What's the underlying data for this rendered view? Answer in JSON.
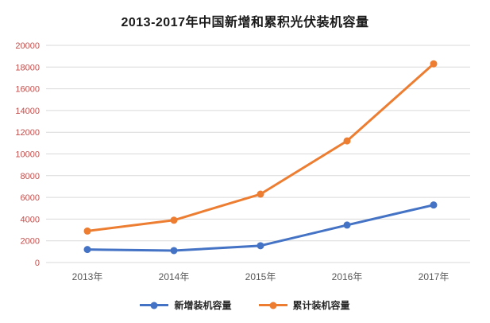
{
  "chart_data": {
    "type": "line",
    "title": "2013-2017年中国新增和累积光伏装机容量",
    "categories": [
      "2013年",
      "2014年",
      "2015年",
      "2016年",
      "2017年"
    ],
    "series": [
      {
        "name": "新增装机容量",
        "color": "#4472c4",
        "values": [
          1200,
          1100,
          1550,
          3450,
          5300
        ]
      },
      {
        "name": "累计装机容量",
        "color": "#ed7d31",
        "values": [
          2900,
          3900,
          6300,
          11200,
          18300
        ]
      }
    ],
    "ylim": [
      0,
      20000
    ],
    "ytick_step": 2000,
    "grid": true,
    "legend_position": "bottom",
    "colors": {
      "ytick_label": "#c0504d",
      "xtick_label": "#595959",
      "gridline": "#d9d9d9",
      "title": "#1a1a1a"
    }
  }
}
